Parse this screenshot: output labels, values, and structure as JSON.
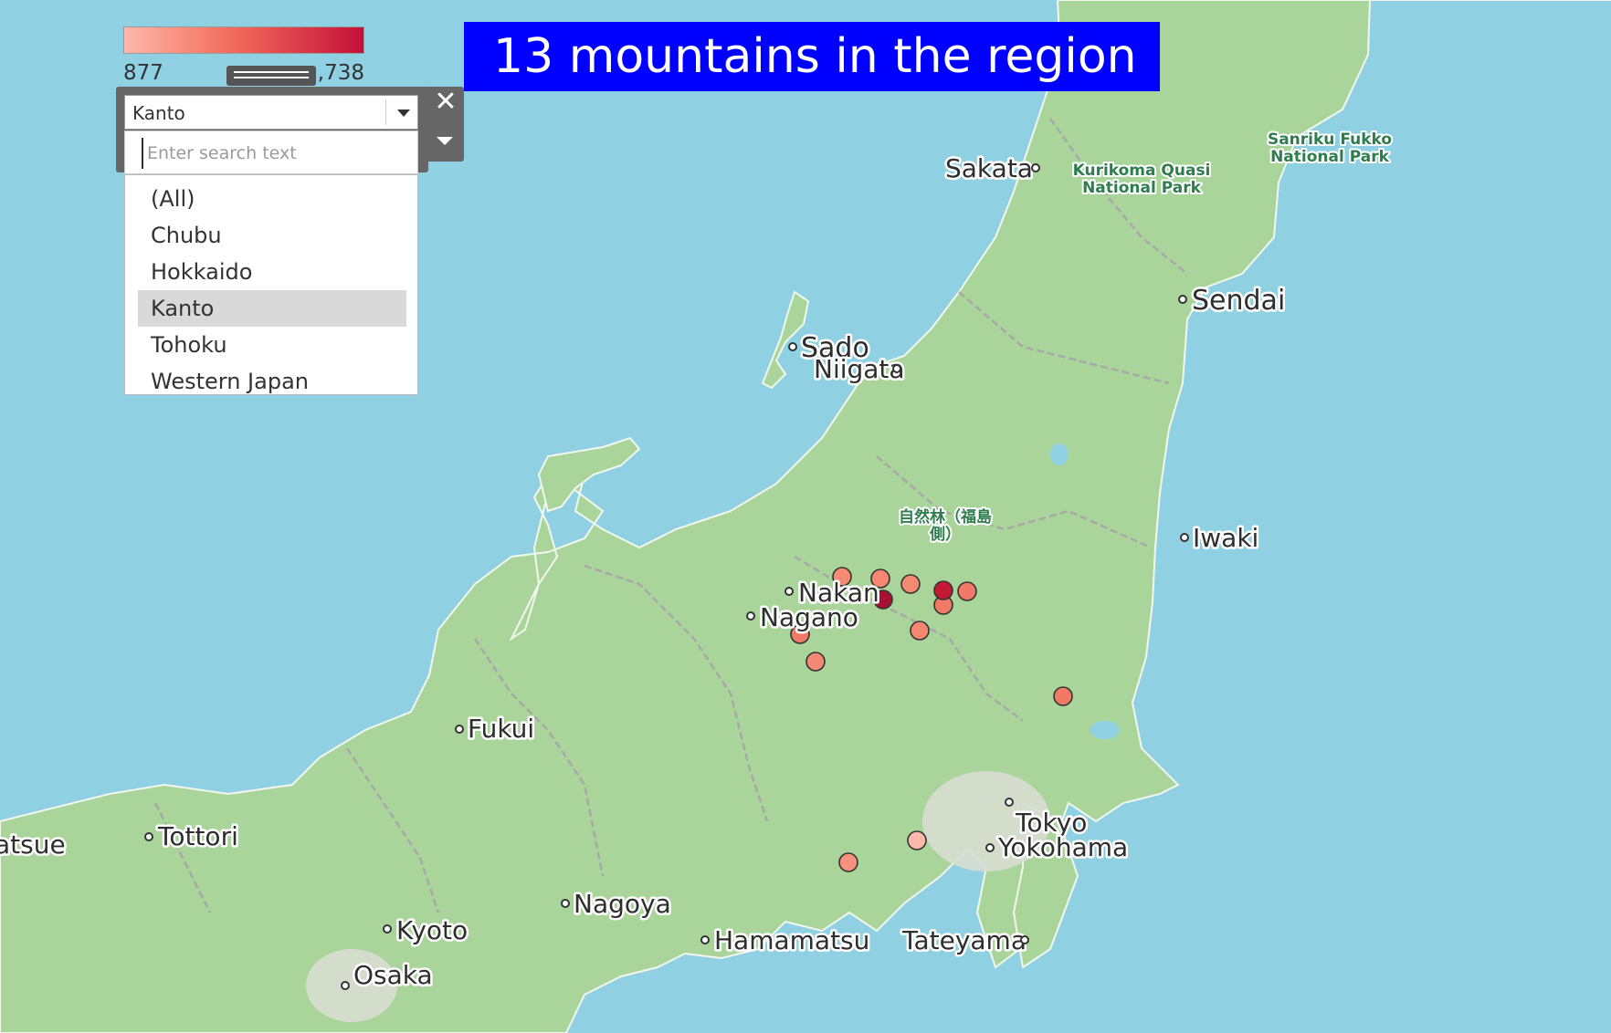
{
  "title": "13 mountains in the region",
  "legend": {
    "min_label": "877",
    "max_label": ",738",
    "color_low": "#fdb8aa",
    "color_high": "#c4103a"
  },
  "filter": {
    "selected": "Kanto",
    "search_placeholder": "Enter search text",
    "options": [
      "(All)",
      "Chubu",
      "Hokkaido",
      "Kanto",
      "Tohoku",
      "Western Japan"
    ],
    "highlighted_option": "Kanto",
    "close_glyph": "✕"
  },
  "places": [
    {
      "name": "Sakata"
    },
    {
      "name": "Sendai"
    },
    {
      "name": "Sado"
    },
    {
      "name": "Niigata"
    },
    {
      "name": "Iwaki"
    },
    {
      "name": "Nakan"
    },
    {
      "name": "Nagano"
    },
    {
      "name": "Fukui"
    },
    {
      "name": "Tottori"
    },
    {
      "name": "atsue"
    },
    {
      "name": "Tokyo"
    },
    {
      "name": "Yokohama"
    },
    {
      "name": "Nagoya"
    },
    {
      "name": "Kyoto"
    },
    {
      "name": "Osaka"
    },
    {
      "name": "Hamamatsu"
    },
    {
      "name": "Tateyama"
    }
  ],
  "parks": [
    {
      "name": "Sanriku Fukko",
      "name2": "National Park"
    },
    {
      "name": "Kurikoma Quasi",
      "name2": "National Park"
    },
    {
      "name": "自然林（福島",
      "name2": "側）"
    }
  ],
  "mountain_markers": {
    "count": 13,
    "colors": [
      "#f58b74",
      "#f5866f",
      "#f38a72",
      "#a80f30",
      "#f17a66",
      "#f17a66",
      "#f5876f",
      "#f17a66",
      "#f28a73",
      "#f17a66",
      "#fcb8a9",
      "#f5917c",
      "#c41932"
    ]
  }
}
